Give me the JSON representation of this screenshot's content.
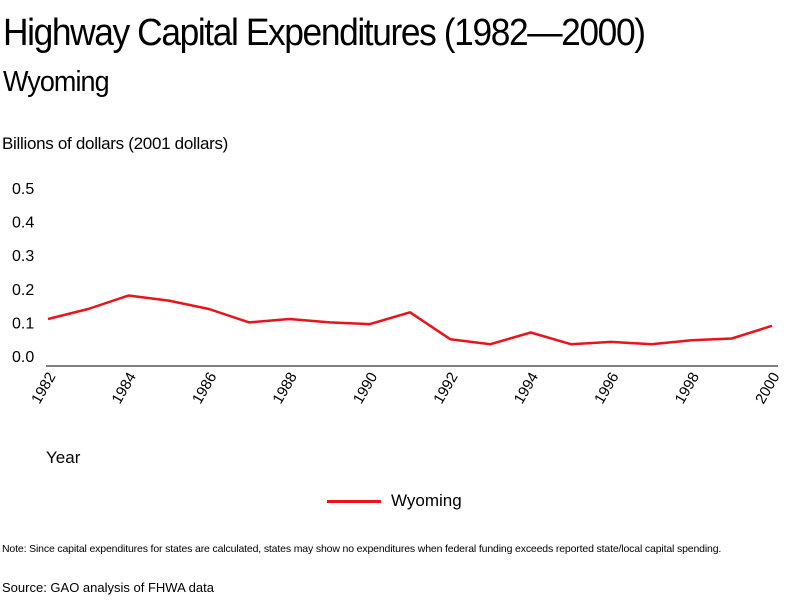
{
  "chart_data": {
    "type": "line",
    "title": "Highway Capital Expenditures (1982—2000)",
    "subtitle": "Wyoming",
    "xlabel": "Year",
    "ylabel": "Billions of dollars (2001 dollars)",
    "ylim": [
      0,
      0.5
    ],
    "yticks": [
      "0.0",
      "0.1",
      "0.2",
      "0.3",
      "0.4",
      "0.5"
    ],
    "xlim": [
      1982,
      2000
    ],
    "xticks": [
      "1982",
      "1984",
      "1986",
      "1988",
      "1990",
      "1992",
      "1994",
      "1996",
      "1998",
      "2000"
    ],
    "grid": false,
    "legend_position": "bottom-center",
    "series": [
      {
        "name": "Wyoming",
        "color": "#e8141c",
        "x": [
          1982,
          1983,
          1984,
          1985,
          1986,
          1987,
          1988,
          1989,
          1990,
          1991,
          1992,
          1993,
          1994,
          1995,
          1996,
          1997,
          1998,
          1999,
          2000
        ],
        "values": [
          0.11,
          0.14,
          0.18,
          0.165,
          0.14,
          0.1,
          0.11,
          0.1,
          0.095,
          0.13,
          0.05,
          0.035,
          0.07,
          0.035,
          0.042,
          0.035,
          0.047,
          0.052,
          0.09
        ]
      }
    ]
  },
  "note": "Note: Since capital expenditures for states are calculated, states may show no expenditures when federal funding exceeds reported state/local capital spending.",
  "source": "Source: GAO analysis of FHWA data"
}
